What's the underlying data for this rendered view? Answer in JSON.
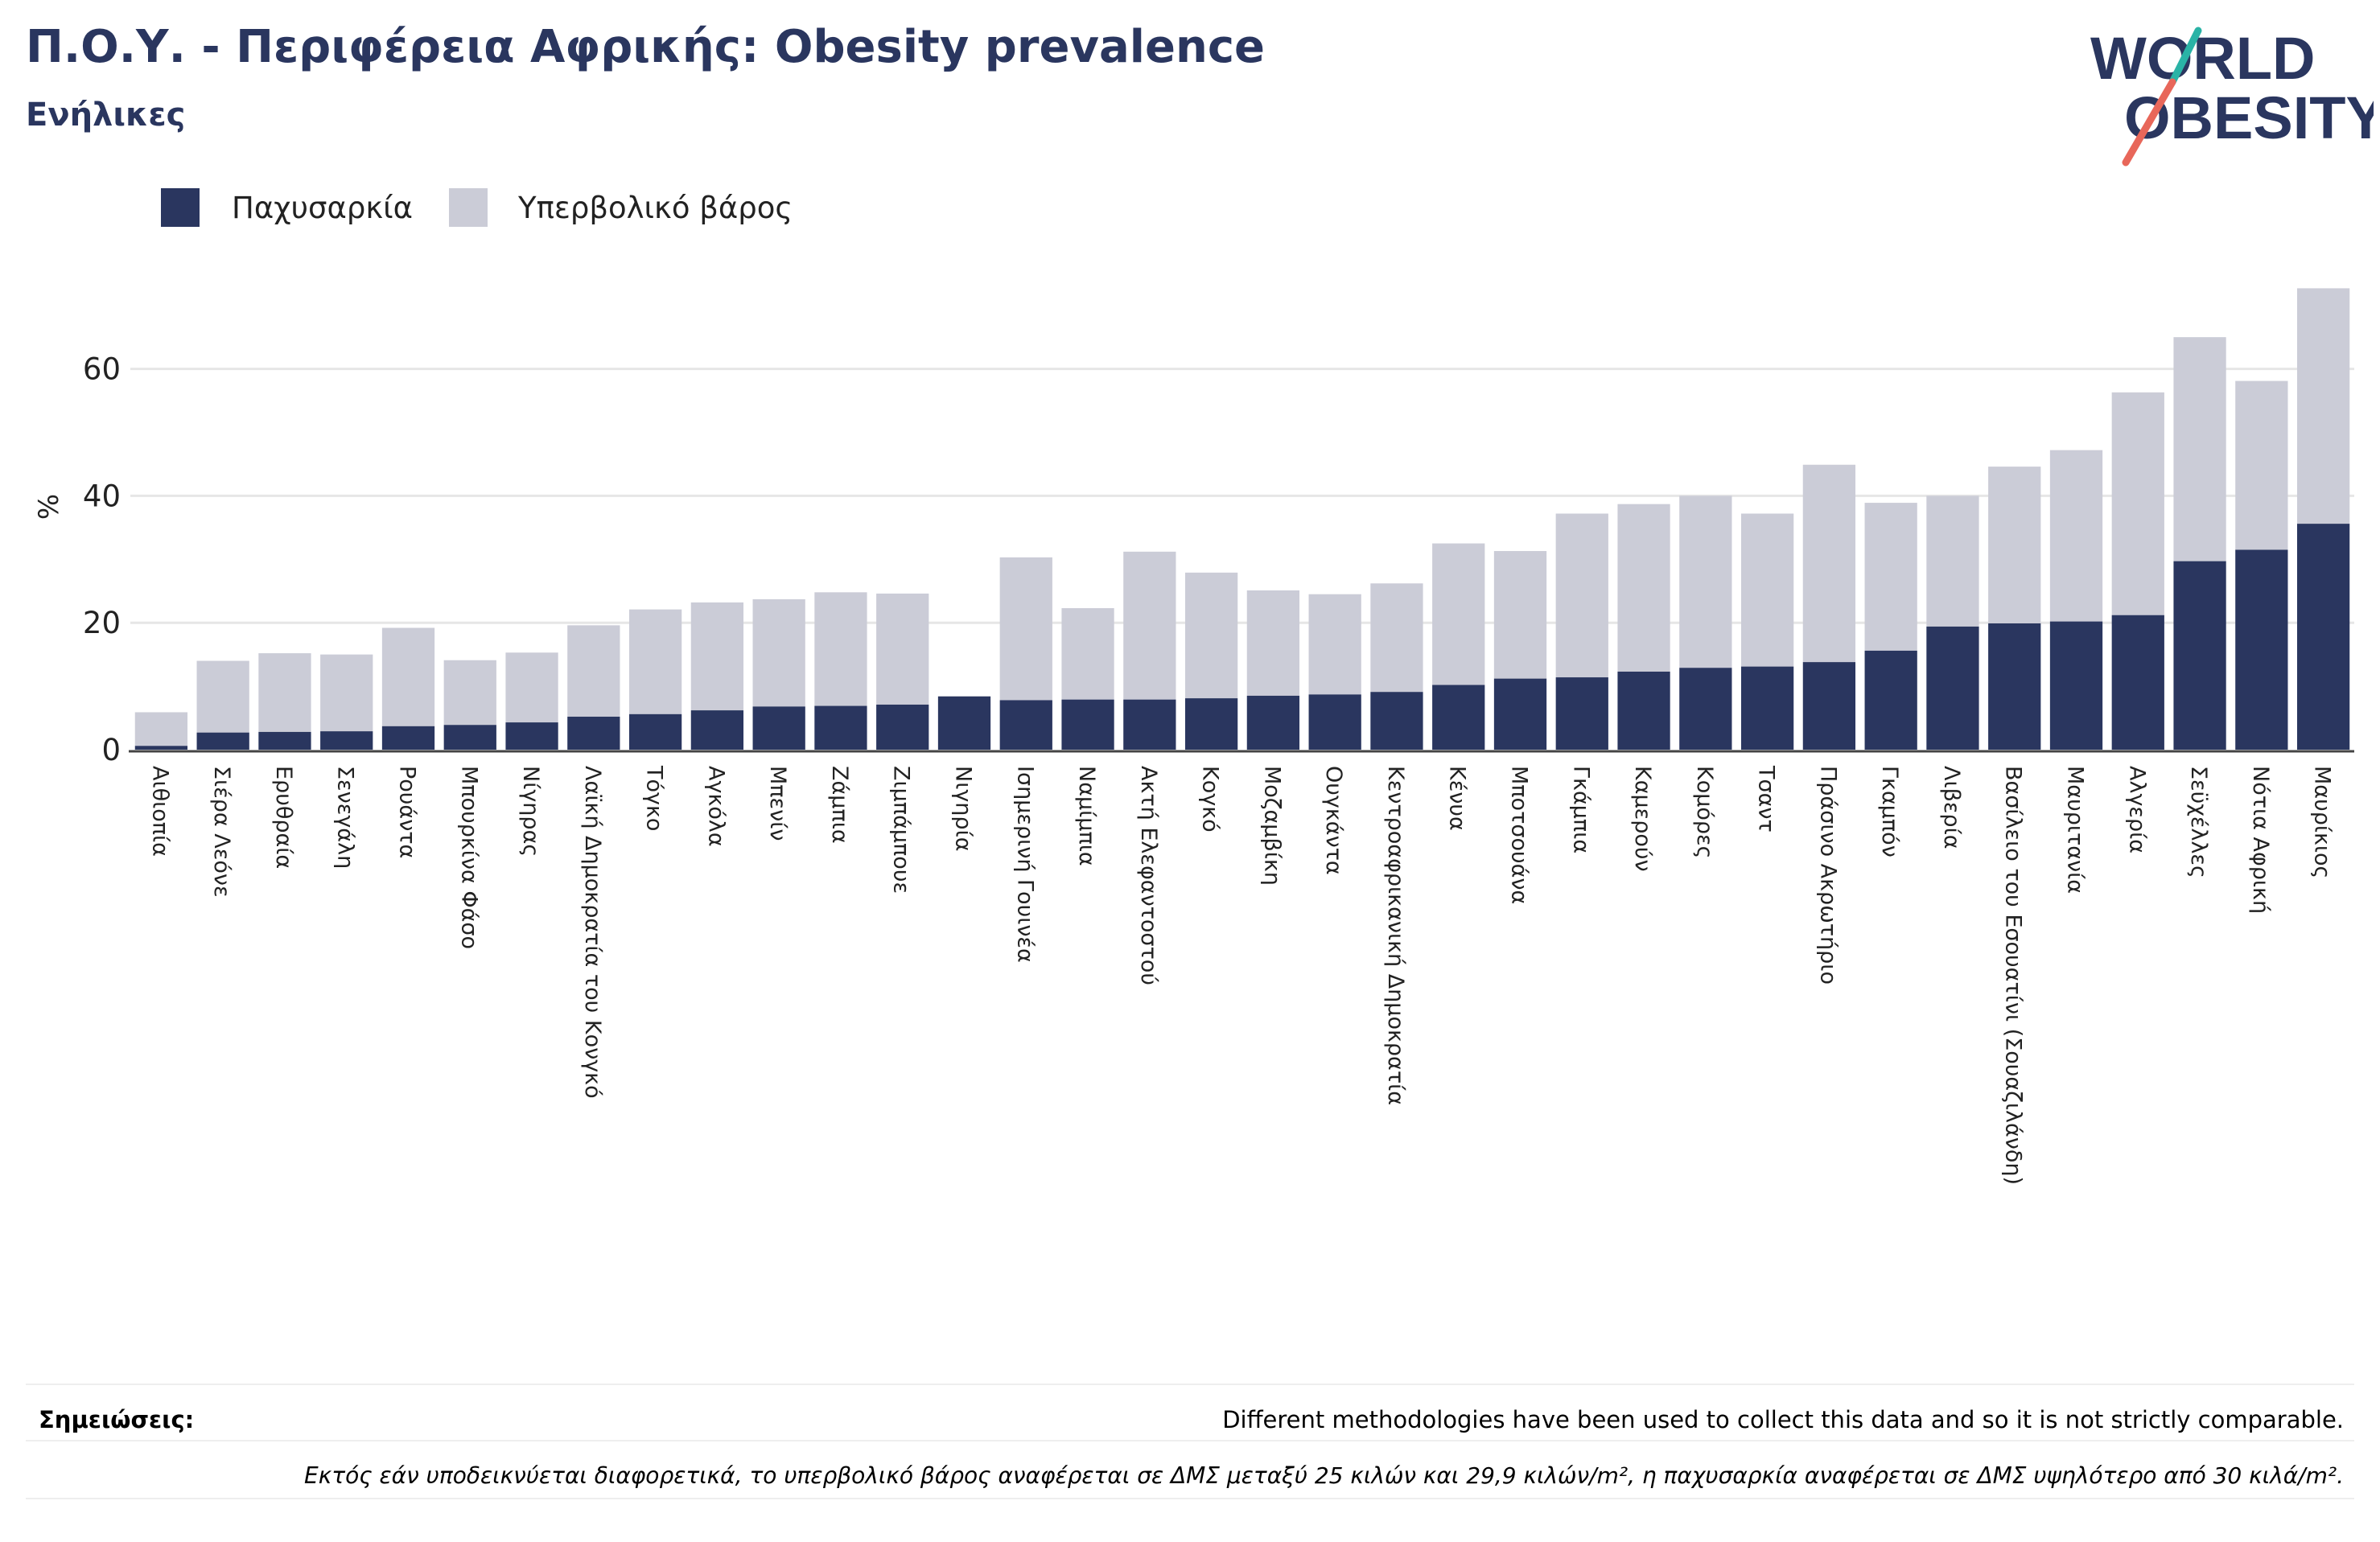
{
  "title": "Π.Ο.Υ. - Περιφέρεια Αφρικής: Obesity prevalence",
  "subtitle": "Ενήλικες",
  "logo": {
    "line1": "WORLD",
    "line2": "OBESITY"
  },
  "notes": {
    "label": "Σημειώσεις:",
    "text": "Different methodologies have been used to collect this data and so it is not strictly comparable.",
    "footnote": "Εκτός εάν υποδεικνύεται διαφορετικά, το υπερβολικό βάρος αναφέρεται σε ΔΜΣ μεταξύ 25 κιλών και 29,9 κιλών/m², η παχυσαρκία αναφέρεται σε ΔΜΣ υψηλότερο από 30 κιλά/m²."
  },
  "colors": {
    "obesity": "#2a365f",
    "overweight": "#cbccd7",
    "title": "#2a365f",
    "grid": "#e6e6e6",
    "logo_accent_top": "#2ab3a6",
    "logo_accent_bottom": "#e8675a"
  },
  "chart_data": {
    "type": "bar",
    "stacked": true,
    "ylabel": "%",
    "ylim": [
      0,
      73
    ],
    "yticks": [
      0,
      20,
      40,
      60
    ],
    "grid": true,
    "legend_position": "top-left",
    "categories": [
      "Αιθιοπία",
      "Σιέρα Λεόνε",
      "Ερυθραία",
      "Σενεγάλη",
      "Ρουάντα",
      "Μπουρκίνα Φάσο",
      "Νίγηρας",
      "Λαϊκή Δημοκρατία του Κονγκό",
      "Τόγκο",
      "Αγκόλα",
      "Μπενίν",
      "Ζάμπια",
      "Ζιμπάμπουε",
      "Νιγηρία",
      "Ισημερινή Γουινέα",
      "Ναμίμπια",
      "Ακτή Ελεφαντοστού",
      "Κογκό",
      "Μοζαμβίκη",
      "Ουγκάντα",
      "Κεντροαφρικανική Δημοκρατία",
      "Κένυα",
      "Μποτσουάνα",
      "Γκάμπια",
      "Καμερούν",
      "Κομόρες",
      "Τσαντ",
      "Πράσινο Ακρωτήριο",
      "Γκαμπόν",
      "Λιβερία",
      "Βασίλειο του Εσουατίνι (Σουαζιλάνδη)",
      "Μαυριτανία",
      "Αλγερία",
      "Σεϋχέλλες",
      "Νότια Αφρική",
      "Μαυρίκιος"
    ],
    "series": [
      {
        "name": "Παχυσαρκία",
        "values": [
          0.6,
          2.7,
          2.8,
          2.9,
          3.7,
          3.9,
          4.3,
          5.2,
          5.6,
          6.2,
          6.8,
          6.9,
          7.1,
          8.4,
          7.8,
          7.9,
          7.9,
          8.1,
          8.5,
          8.7,
          9.1,
          10.2,
          11.2,
          11.4,
          12.3,
          12.9,
          13.1,
          13.8,
          15.6,
          19.4,
          19.9,
          20.2,
          21.2,
          29.7,
          31.5,
          35.6
        ]
      },
      {
        "name": "Υπερβολικό βάρος",
        "values": [
          5.3,
          11.3,
          12.4,
          12.1,
          15.5,
          10.2,
          11.0,
          14.4,
          16.5,
          17.0,
          16.9,
          17.9,
          17.5,
          0,
          22.5,
          14.4,
          23.3,
          19.8,
          16.6,
          15.8,
          17.1,
          22.3,
          20.1,
          25.8,
          26.4,
          27.1,
          24.1,
          31.1,
          23.3,
          20.6,
          24.7,
          27.0,
          35.1,
          35.3,
          26.6,
          37.1
        ]
      }
    ]
  }
}
